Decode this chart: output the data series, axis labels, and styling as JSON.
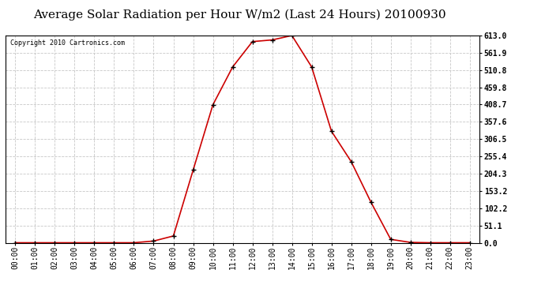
{
  "title": "Average Solar Radiation per Hour W/m2 (Last 24 Hours) 20100930",
  "copyright": "Copyright 2010 Cartronics.com",
  "hours": [
    "00:00",
    "01:00",
    "02:00",
    "03:00",
    "04:00",
    "05:00",
    "06:00",
    "07:00",
    "08:00",
    "09:00",
    "10:00",
    "11:00",
    "12:00",
    "13:00",
    "14:00",
    "15:00",
    "16:00",
    "17:00",
    "18:00",
    "19:00",
    "20:00",
    "21:00",
    "22:00",
    "23:00"
  ],
  "values": [
    0,
    0,
    0,
    0,
    0,
    0,
    0,
    5,
    20,
    215,
    408,
    520,
    595,
    600,
    613,
    520,
    330,
    240,
    120,
    10,
    1,
    0,
    0,
    0
  ],
  "line_color": "#cc0000",
  "marker": "+",
  "marker_color": "#000000",
  "background_color": "#ffffff",
  "plot_bg_color": "#ffffff",
  "grid_color": "#c8c8c8",
  "grid_style": "--",
  "yticks": [
    0.0,
    51.1,
    102.2,
    153.2,
    204.3,
    255.4,
    306.5,
    357.6,
    408.7,
    459.8,
    510.8,
    561.9,
    613.0
  ],
  "ylim": [
    0,
    613.0
  ],
  "title_fontsize": 11,
  "copyright_fontsize": 6,
  "tick_fontsize": 7,
  "xlabel_rotation": 90
}
